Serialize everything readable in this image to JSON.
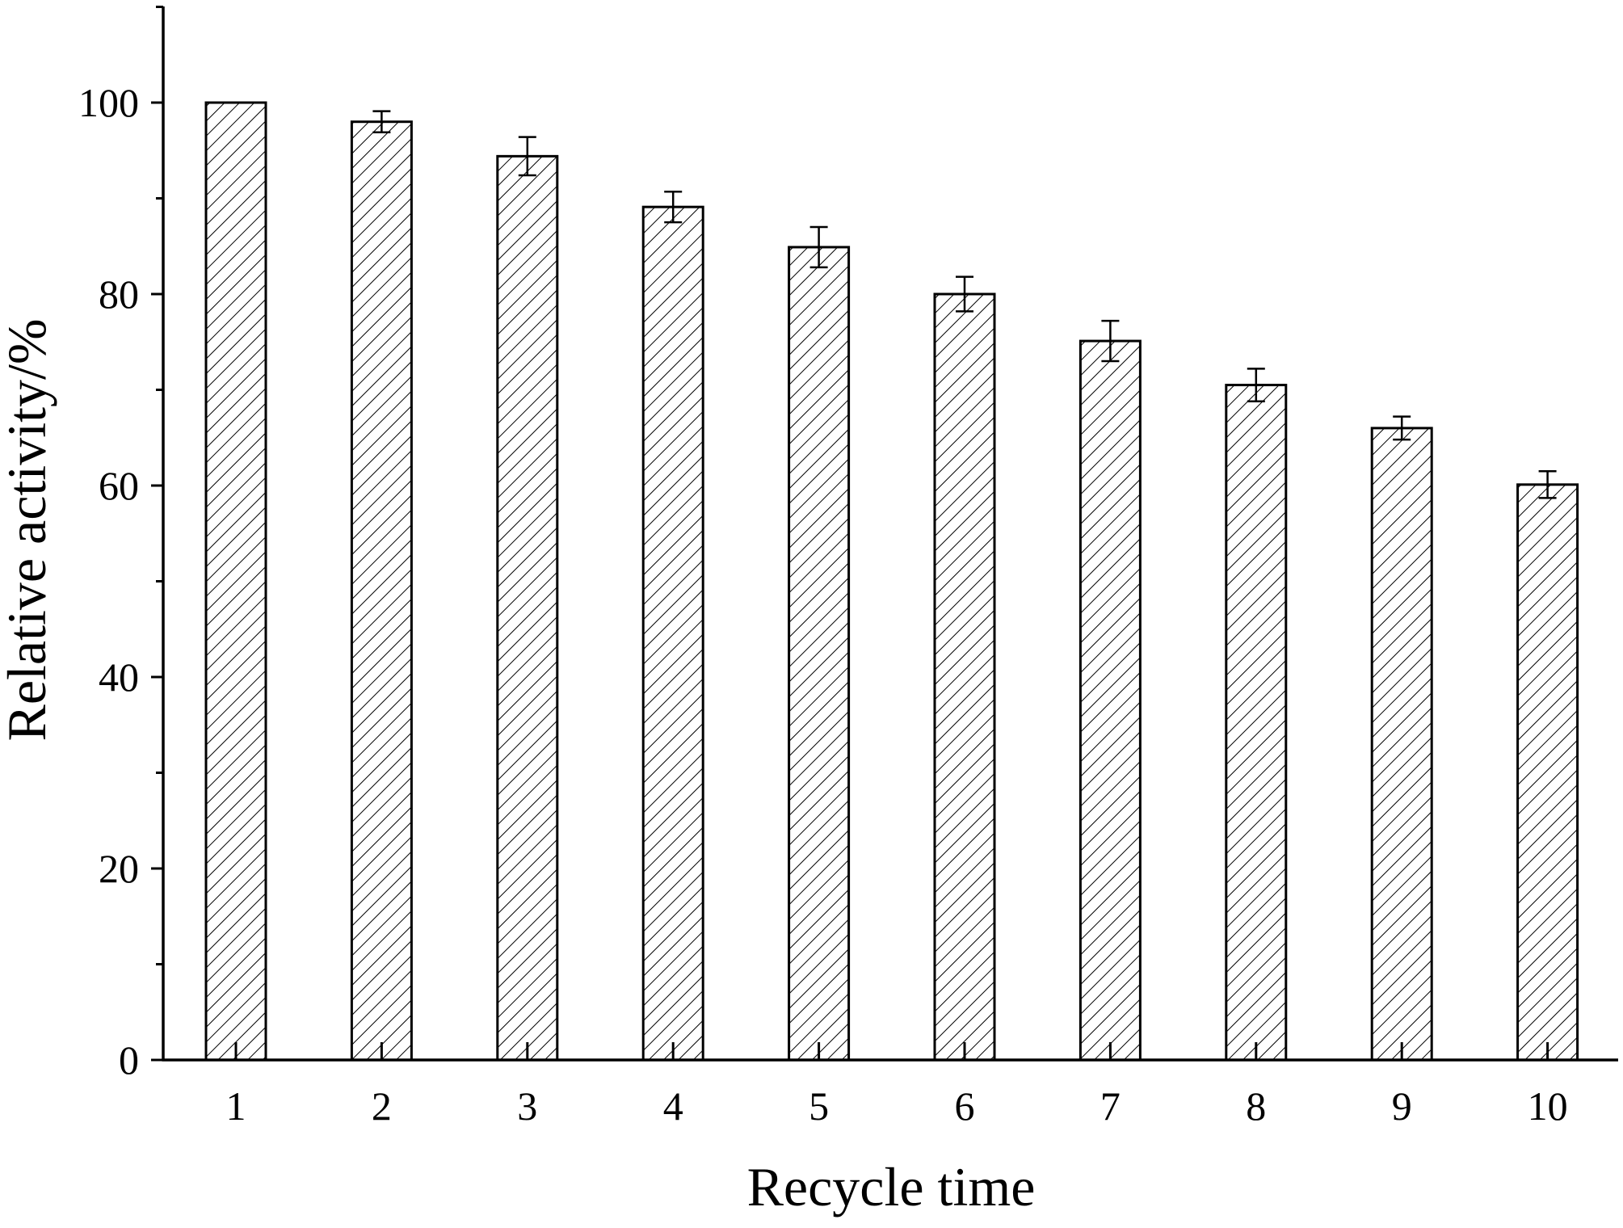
{
  "chart_data": {
    "type": "bar",
    "title": "",
    "xlabel": "Recycle time",
    "ylabel": "Relative activity/%",
    "categories": [
      "1",
      "2",
      "3",
      "4",
      "5",
      "6",
      "7",
      "8",
      "9",
      "10"
    ],
    "values": [
      100,
      98,
      94.4,
      89.1,
      84.9,
      80.0,
      75.1,
      70.5,
      66.0,
      60.1
    ],
    "error": [
      0,
      1.1,
      2.0,
      1.6,
      2.1,
      1.8,
      2.1,
      1.7,
      1.2,
      1.4
    ],
    "ylim": [
      0,
      110
    ],
    "yticks": [
      0,
      20,
      40,
      60,
      80,
      100
    ],
    "y_minor_step": 10,
    "grid": false,
    "legend": "none",
    "bar_fill": "hatched",
    "colors": {
      "axis": "#000000",
      "bar_edge": "#000000",
      "hatch": "#000000",
      "background": "#ffffff"
    }
  }
}
